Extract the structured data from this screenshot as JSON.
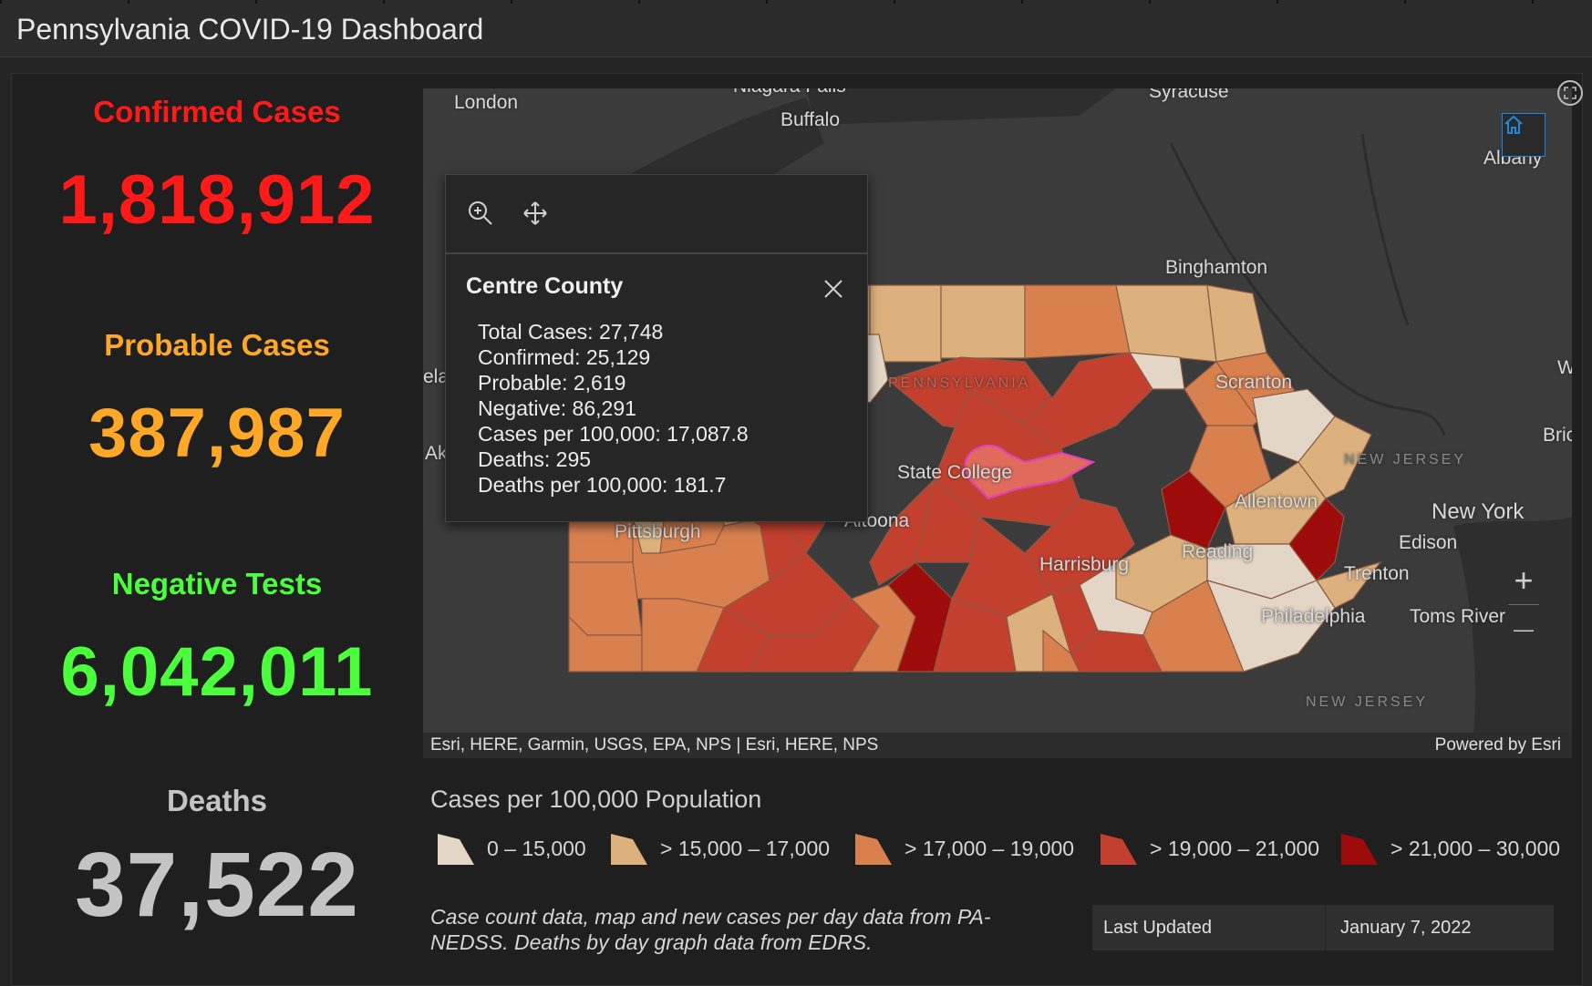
{
  "app": {
    "title": "Pennsylvania COVID-19 Dashboard"
  },
  "stats": [
    {
      "label": "Confirmed Cases",
      "value": "1,818,912",
      "color": "#ff1a1a"
    },
    {
      "label": "Probable Cases",
      "value": "387,987",
      "color": "#ffa726"
    },
    {
      "label": "Negative Tests",
      "value": "6,042,011",
      "color": "#4cff3d"
    },
    {
      "label": "Deaths",
      "value": "37,522",
      "color": "#c4c4c4"
    }
  ],
  "map": {
    "labels": {
      "london": "London",
      "niagara": "Niagara Falls",
      "buffalo": "Buffalo",
      "syracuse": "Syracuse",
      "albany": "Albany",
      "binghamton": "Binghamton",
      "scranton": "Scranton",
      "state_college": "State College",
      "altoona": "Altoona",
      "pittsburgh": "Pittsburgh",
      "allentown": "Allentown",
      "reading": "Reading",
      "harrisburg": "Harrisburg",
      "philadelphia": "Philadelphia",
      "trenton": "Trenton",
      "new_york": "New York",
      "edison": "Edison",
      "toms_river": "Toms River",
      "new_jersey_1": "NEW JERSEY",
      "new_jersey_2": "NEW JERSEY",
      "pennsylvania": "PENNSYLVANIA",
      "cleveland_frag": "ela",
      "akron_frag": "Ak",
      "bric_frag": "Bric",
      "w_frag": "W"
    },
    "attribution": "Esri, HERE, Garmin, USGS, EPA, NPS | Esri, HERE, NPS",
    "powered_by": "Powered by Esri",
    "zoom_in": "+",
    "zoom_out": "—"
  },
  "popup": {
    "title": "Centre County",
    "lines": [
      "Total Cases: 27,748",
      "Confirmed: 25,129",
      "Probable: 2,619",
      "Negative: 86,291",
      "Cases per 100,000: 17,087.8",
      "Deaths: 295",
      "Deaths per 100,000: 181.7"
    ]
  },
  "legend": {
    "title": "Cases per 100,000 Population",
    "items": [
      {
        "label": "0 – 15,000",
        "color": "#e3d6c6"
      },
      {
        "label": "> 15,000 – 17,000",
        "color": "#dcb17e"
      },
      {
        "label": "> 17,000 – 19,000",
        "color": "#d9804f"
      },
      {
        "label": "> 19,000 – 21,000",
        "color": "#c4402e"
      },
      {
        "label": "> 21,000 – 30,000",
        "color": "#9e0b0b"
      }
    ]
  },
  "note": "Case count data, map and new cases per day data from PA-NEDSS.  Deaths by day graph data from EDRS.",
  "updated": {
    "label": "Last Updated",
    "value": "January 7, 2022"
  }
}
